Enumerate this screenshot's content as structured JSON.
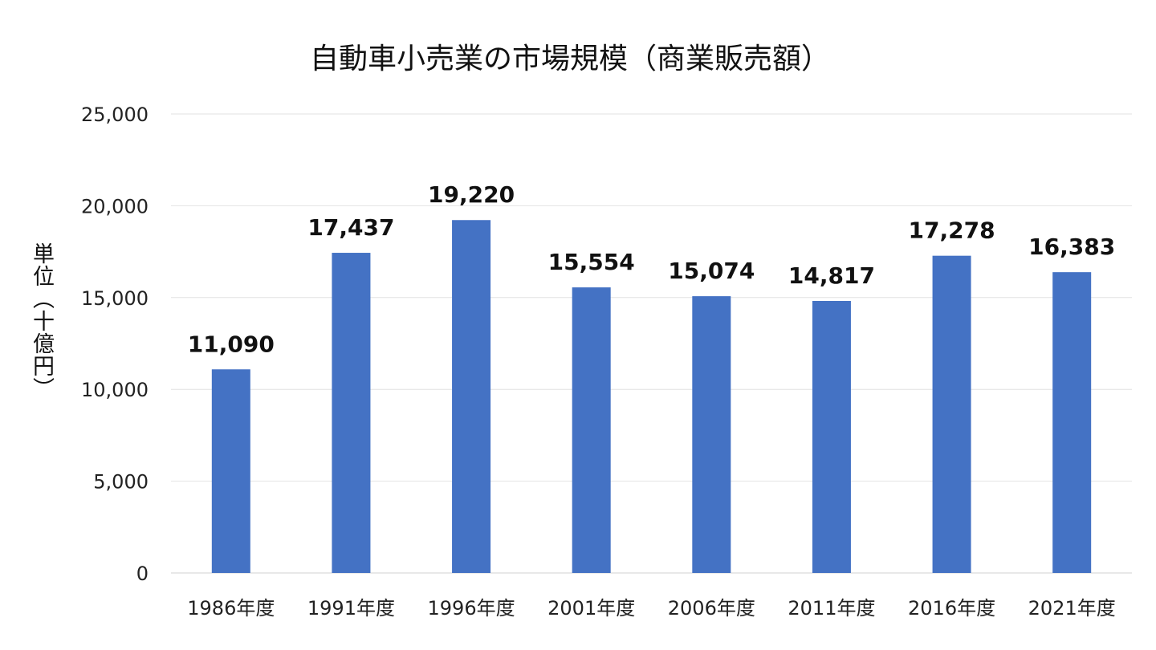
{
  "chart_data": {
    "type": "bar",
    "title": "自動車小売業の市場規模（商業販売額）",
    "xlabel": "",
    "ylabel": "単位（十億円）",
    "categories": [
      "1986年度",
      "1991年度",
      "1996年度",
      "2001年度",
      "2006年度",
      "2011年度",
      "2016年度",
      "2021年度"
    ],
    "values": [
      11090,
      17437,
      19220,
      15554,
      15074,
      14817,
      17278,
      16383
    ],
    "data_labels": [
      "11,090",
      "17,437",
      "19,220",
      "15,554",
      "15,074",
      "14,817",
      "17,278",
      "16,383"
    ],
    "ylim": [
      0,
      25000
    ],
    "yticks": [
      0,
      5000,
      10000,
      15000,
      20000,
      25000
    ],
    "ytick_labels": [
      "0",
      "5,000",
      "10,000",
      "15,000",
      "20,000",
      "25,000"
    ],
    "grid": true,
    "legend": "none",
    "bar_color": "#4472C4"
  }
}
